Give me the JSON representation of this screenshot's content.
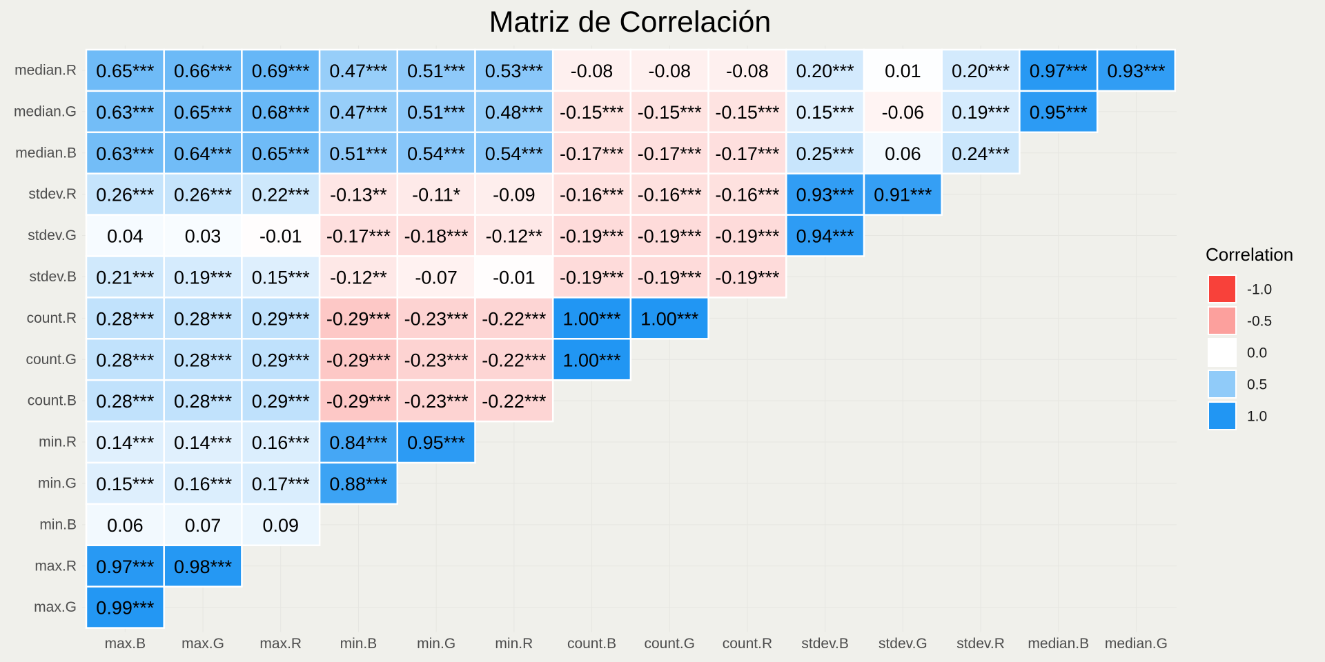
{
  "chart_data": {
    "type": "heatmap",
    "title": "Matriz de Correlación",
    "x_categories": [
      "max.B",
      "max.G",
      "max.R",
      "min.B",
      "min.G",
      "min.R",
      "count.B",
      "count.G",
      "count.R",
      "stdev.B",
      "stdev.G",
      "stdev.R",
      "median.B",
      "median.G"
    ],
    "y_categories": [
      "median.R",
      "median.G",
      "median.B",
      "stdev.R",
      "stdev.G",
      "stdev.B",
      "count.R",
      "count.G",
      "count.B",
      "min.R",
      "min.G",
      "min.B",
      "max.R",
      "max.G"
    ],
    "values": [
      [
        0.65,
        0.66,
        0.69,
        0.47,
        0.51,
        0.53,
        -0.08,
        -0.08,
        -0.08,
        0.2,
        0.01,
        0.2,
        0.97,
        0.93
      ],
      [
        0.63,
        0.65,
        0.68,
        0.47,
        0.51,
        0.48,
        -0.15,
        -0.15,
        -0.15,
        0.15,
        -0.06,
        0.19,
        0.95,
        null
      ],
      [
        0.63,
        0.64,
        0.65,
        0.51,
        0.54,
        0.54,
        -0.17,
        -0.17,
        -0.17,
        0.25,
        0.06,
        0.24,
        null,
        null
      ],
      [
        0.26,
        0.26,
        0.22,
        -0.13,
        -0.11,
        -0.09,
        -0.16,
        -0.16,
        -0.16,
        0.93,
        0.91,
        null,
        null,
        null
      ],
      [
        0.04,
        0.03,
        -0.01,
        -0.17,
        -0.18,
        -0.12,
        -0.19,
        -0.19,
        -0.19,
        0.94,
        null,
        null,
        null,
        null
      ],
      [
        0.21,
        0.19,
        0.15,
        -0.12,
        -0.07,
        -0.01,
        -0.19,
        -0.19,
        -0.19,
        null,
        null,
        null,
        null,
        null
      ],
      [
        0.28,
        0.28,
        0.29,
        -0.29,
        -0.23,
        -0.22,
        1.0,
        1.0,
        null,
        null,
        null,
        null,
        null,
        null
      ],
      [
        0.28,
        0.28,
        0.29,
        -0.29,
        -0.23,
        -0.22,
        1.0,
        null,
        null,
        null,
        null,
        null,
        null,
        null
      ],
      [
        0.28,
        0.28,
        0.29,
        -0.29,
        -0.23,
        -0.22,
        null,
        null,
        null,
        null,
        null,
        null,
        null,
        null
      ],
      [
        0.14,
        0.14,
        0.16,
        0.84,
        0.95,
        null,
        null,
        null,
        null,
        null,
        null,
        null,
        null,
        null
      ],
      [
        0.15,
        0.16,
        0.17,
        0.88,
        null,
        null,
        null,
        null,
        null,
        null,
        null,
        null,
        null,
        null
      ],
      [
        0.06,
        0.07,
        0.09,
        null,
        null,
        null,
        null,
        null,
        null,
        null,
        null,
        null,
        null,
        null
      ],
      [
        0.97,
        0.98,
        null,
        null,
        null,
        null,
        null,
        null,
        null,
        null,
        null,
        null,
        null,
        null
      ],
      [
        0.99,
        null,
        null,
        null,
        null,
        null,
        null,
        null,
        null,
        null,
        null,
        null,
        null,
        null
      ]
    ],
    "labels": [
      [
        "0.65***",
        "0.66***",
        "0.69***",
        "0.47***",
        "0.51***",
        "0.53***",
        "-0.08",
        "-0.08",
        "-0.08",
        "0.20***",
        "0.01",
        "0.20***",
        "0.97***",
        "0.93***"
      ],
      [
        "0.63***",
        "0.65***",
        "0.68***",
        "0.47***",
        "0.51***",
        "0.48***",
        "-0.15***",
        "-0.15***",
        "-0.15***",
        "0.15***",
        "-0.06",
        "0.19***",
        "0.95***",
        null
      ],
      [
        "0.63***",
        "0.64***",
        "0.65***",
        "0.51***",
        "0.54***",
        "0.54***",
        "-0.17***",
        "-0.17***",
        "-0.17***",
        "0.25***",
        "0.06",
        "0.24***",
        null,
        null
      ],
      [
        "0.26***",
        "0.26***",
        "0.22***",
        "-0.13**",
        "-0.11*",
        "-0.09",
        "-0.16***",
        "-0.16***",
        "-0.16***",
        "0.93***",
        "0.91***",
        null,
        null,
        null
      ],
      [
        "0.04",
        "0.03",
        "-0.01",
        "-0.17***",
        "-0.18***",
        "-0.12**",
        "-0.19***",
        "-0.19***",
        "-0.19***",
        "0.94***",
        null,
        null,
        null,
        null
      ],
      [
        "0.21***",
        "0.19***",
        "0.15***",
        "-0.12**",
        "-0.07",
        "-0.01",
        "-0.19***",
        "-0.19***",
        "-0.19***",
        null,
        null,
        null,
        null,
        null
      ],
      [
        "0.28***",
        "0.28***",
        "0.29***",
        "-0.29***",
        "-0.23***",
        "-0.22***",
        "1.00***",
        "1.00***",
        null,
        null,
        null,
        null,
        null,
        null
      ],
      [
        "0.28***",
        "0.28***",
        "0.29***",
        "-0.29***",
        "-0.23***",
        "-0.22***",
        "1.00***",
        null,
        null,
        null,
        null,
        null,
        null,
        null
      ],
      [
        "0.28***",
        "0.28***",
        "0.29***",
        "-0.29***",
        "-0.23***",
        "-0.22***",
        null,
        null,
        null,
        null,
        null,
        null,
        null,
        null
      ],
      [
        "0.14***",
        "0.14***",
        "0.16***",
        "0.84***",
        "0.95***",
        null,
        null,
        null,
        null,
        null,
        null,
        null,
        null,
        null
      ],
      [
        "0.15***",
        "0.16***",
        "0.17***",
        "0.88***",
        null,
        null,
        null,
        null,
        null,
        null,
        null,
        null,
        null,
        null
      ],
      [
        "0.06",
        "0.07",
        "0.09",
        null,
        null,
        null,
        null,
        null,
        null,
        null,
        null,
        null,
        null,
        null
      ],
      [
        "0.97***",
        "0.98***",
        null,
        null,
        null,
        null,
        null,
        null,
        null,
        null,
        null,
        null,
        null,
        null
      ],
      [
        "0.99***",
        null,
        null,
        null,
        null,
        null,
        null,
        null,
        null,
        null,
        null,
        null,
        null,
        null
      ]
    ],
    "color_scale": {
      "low": "#f8413a",
      "mid": "#ffffff",
      "high": "#2196f3",
      "domain": [
        -1,
        1
      ]
    },
    "legend": {
      "title": "Correlation",
      "position": "right",
      "entries": [
        {
          "label": "-1.0",
          "value": -1.0
        },
        {
          "label": "-0.5",
          "value": -0.5
        },
        {
          "label": "0.0",
          "value": 0.0
        },
        {
          "label": "0.5",
          "value": 0.5
        },
        {
          "label": "1.0",
          "value": 1.0
        }
      ]
    },
    "grid": true
  }
}
